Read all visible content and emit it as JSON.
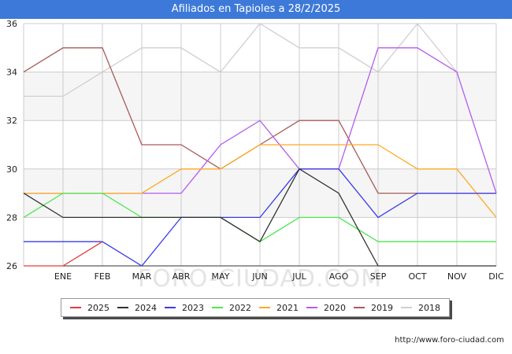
{
  "header": {
    "title": "Afiliados en Tapioles a 28/2/2025"
  },
  "watermark": "FORO-CIUDAD.COM",
  "source": "http://www.foro-ciudad.com",
  "chart_data": {
    "type": "line",
    "title": "Afiliados en Tapioles a 28/2/2025",
    "xlabel": "",
    "ylabel": "",
    "x_tick_labels": [
      "ENE",
      "FEB",
      "MAR",
      "ABR",
      "MAY",
      "JUN",
      "JUL",
      "AGO",
      "SEP",
      "OCT",
      "NOV",
      "DIC"
    ],
    "y_ticks": [
      26,
      28,
      30,
      32,
      34,
      36
    ],
    "ylim": [
      26,
      36
    ],
    "grid": true,
    "legend_position": "bottom",
    "series": [
      {
        "name": "2025",
        "color": "#e83a3a",
        "values": [
          26,
          26,
          27
        ]
      },
      {
        "name": "2024",
        "color": "#333333",
        "values": [
          29,
          28,
          28,
          28,
          28,
          28,
          27,
          30,
          29,
          26,
          26,
          26,
          26
        ]
      },
      {
        "name": "2023",
        "color": "#3a3ae8",
        "values": [
          27,
          27,
          27,
          26,
          28,
          28,
          28,
          30,
          30,
          28,
          29,
          29,
          29
        ]
      },
      {
        "name": "2022",
        "color": "#4ee84e",
        "values": [
          28,
          29,
          29,
          28,
          28,
          28,
          27,
          28,
          28,
          27,
          27,
          27,
          27
        ]
      },
      {
        "name": "2021",
        "color": "#ffaa22",
        "values": [
          29,
          29,
          29,
          29,
          30,
          30,
          31,
          31,
          31,
          31,
          30,
          30,
          28
        ]
      },
      {
        "name": "2020",
        "color": "#b45cee",
        "values": [
          29,
          29,
          29,
          29,
          29,
          31,
          32,
          30,
          30,
          35,
          35,
          34,
          29
        ]
      },
      {
        "name": "2019",
        "color": "#aa5a5a",
        "values": [
          34,
          35,
          35,
          31,
          31,
          30,
          31,
          32,
          32,
          29,
          29,
          29,
          29
        ]
      },
      {
        "name": "2018",
        "color": "#cfcfcf",
        "values": [
          33,
          33,
          34,
          35,
          35,
          34,
          36,
          35,
          35,
          34,
          36,
          34,
          34
        ]
      }
    ]
  }
}
